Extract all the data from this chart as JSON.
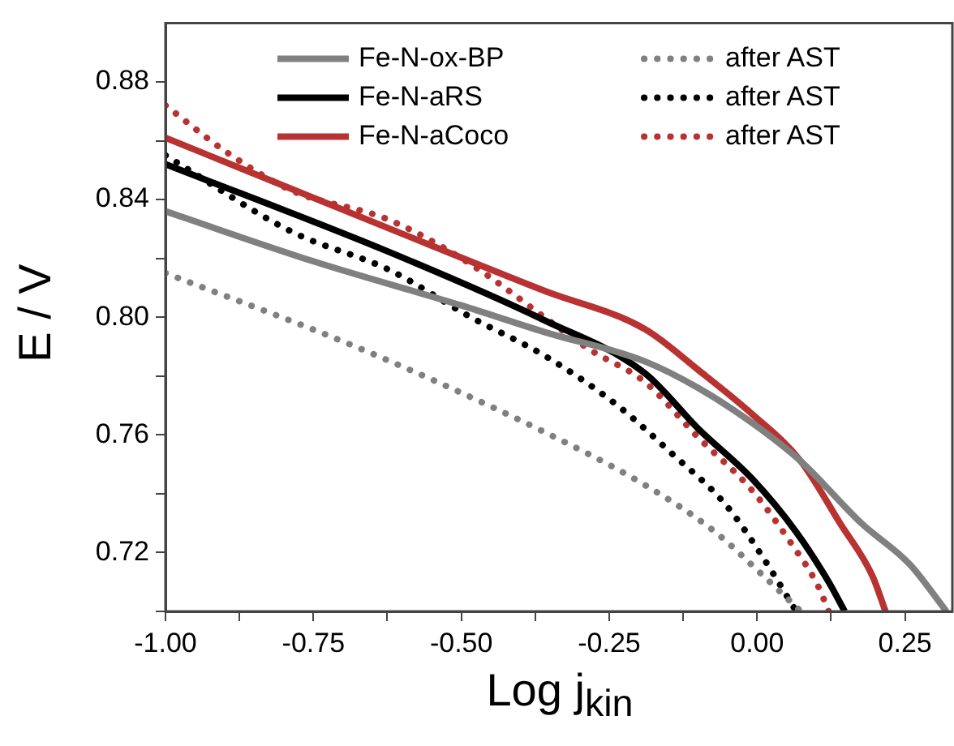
{
  "chart_data": {
    "type": "line",
    "xlabel": "Log j$_{kin}$",
    "ylabel": "E / V",
    "xlim": [
      -1,
      0.33
    ],
    "ylim": [
      0.7,
      0.9
    ],
    "xticks": [
      {
        "value": -1,
        "label": "-1.00"
      },
      {
        "value": -0.875,
        "label": null
      },
      {
        "value": -0.75,
        "label": "-0.75"
      },
      {
        "value": -0.625,
        "label": null
      },
      {
        "value": -0.5,
        "label": "-0.50"
      },
      {
        "value": -0.375,
        "label": null
      },
      {
        "value": -0.25,
        "label": "-0.25"
      },
      {
        "value": -0.125,
        "label": null
      },
      {
        "value": 0,
        "label": "0.00"
      },
      {
        "value": 0.125,
        "label": null
      },
      {
        "value": 0.25,
        "label": "0.25"
      }
    ],
    "yticks": [
      {
        "value": 0.7,
        "label": null
      },
      {
        "value": 0.72,
        "label": "0.72"
      },
      {
        "value": 0.74,
        "label": null
      },
      {
        "value": 0.76,
        "label": "0.76"
      },
      {
        "value": 0.78,
        "label": null
      },
      {
        "value": 0.8,
        "label": "0.80"
      },
      {
        "value": 0.82,
        "label": null
      },
      {
        "value": 0.84,
        "label": "0.84"
      },
      {
        "value": 0.86,
        "label": null
      },
      {
        "value": 0.88,
        "label": "0.88"
      }
    ],
    "grid": false,
    "legend": "top right",
    "marker": "none",
    "series": [
      {
        "name": "Fe-N-ox-BP",
        "color": "#808080",
        "line_style": "solid",
        "x": [
          -1,
          -0.75,
          -0.5,
          -0.36,
          -0.19,
          -0.1,
          -0.008,
          0.074,
          0.176,
          0.258,
          0.32
        ],
        "values": [
          0.836,
          0.819,
          0.804,
          0.795,
          0.785,
          0.776,
          0.764,
          0.751,
          0.73,
          0.716,
          0.7
        ]
      },
      {
        "name": "Fe-N-aRS",
        "color": "#000000",
        "line_style": "solid",
        "x": [
          -1,
          -0.62,
          -0.36,
          -0.19,
          -0.099,
          -0.008,
          0.066,
          0.121,
          0.148
        ],
        "values": [
          0.852,
          0.822,
          0.799,
          0.781,
          0.762,
          0.745,
          0.727,
          0.71,
          0.7
        ]
      },
      {
        "name": "Fe-N-aCoco",
        "color": "#b83232",
        "line_style": "solid",
        "x": [
          -1,
          -0.62,
          -0.36,
          -0.19,
          -0.099,
          -0.008,
          0.074,
          0.14,
          0.195,
          0.217
        ],
        "values": [
          0.861,
          0.83,
          0.809,
          0.796,
          0.782,
          0.767,
          0.751,
          0.73,
          0.712,
          0.7
        ]
      },
      {
        "name": "after AST",
        "color": "#808080",
        "line_style": "dotted",
        "x": [
          -1,
          -0.667,
          -0.36,
          -0.19,
          -0.071,
          0.011,
          0.074
        ],
        "values": [
          0.815,
          0.789,
          0.761,
          0.743,
          0.727,
          0.712,
          0.7
        ]
      },
      {
        "name": "after AST",
        "color": "#000000",
        "line_style": "dotted",
        "x": [
          -1,
          -0.786,
          -0.621,
          -0.484,
          -0.36,
          -0.236,
          -0.146,
          -0.052,
          0.011,
          0.066
        ],
        "values": [
          0.855,
          0.829,
          0.816,
          0.8,
          0.787,
          0.77,
          0.754,
          0.736,
          0.718,
          0.7
        ]
      },
      {
        "name": "after AST",
        "color": "#b83232",
        "line_style": "dotted",
        "x": [
          -1,
          -0.896,
          -0.786,
          -0.621,
          -0.484,
          -0.346,
          -0.283,
          -0.19,
          -0.099,
          -0.008,
          0.058,
          0.102,
          0.121
        ],
        "values": [
          0.872,
          0.856,
          0.843,
          0.833,
          0.818,
          0.798,
          0.789,
          0.778,
          0.759,
          0.741,
          0.723,
          0.709,
          0.7
        ]
      }
    ]
  }
}
